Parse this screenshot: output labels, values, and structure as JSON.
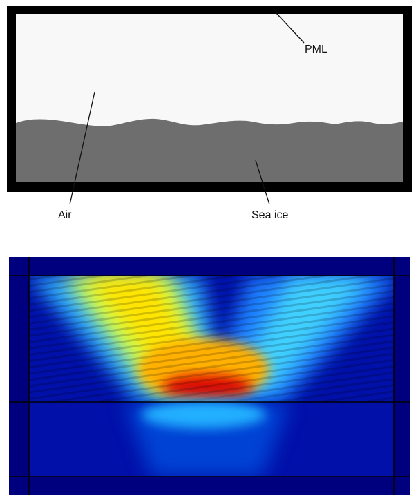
{
  "labels": {
    "pml": "PML",
    "air": "Air",
    "sea_ice": "Sea ice"
  }
}
